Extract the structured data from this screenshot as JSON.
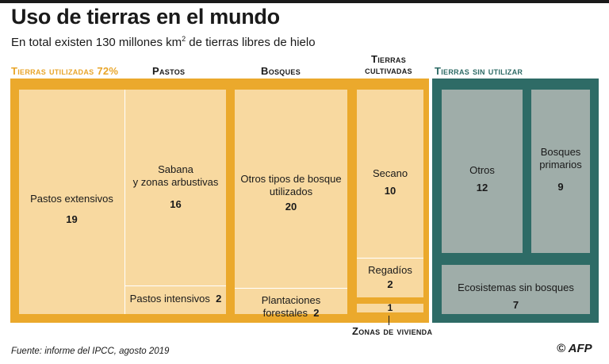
{
  "title": "Uso de tierras en el mundo",
  "subtitle_pre": "En total existen 130 millones km",
  "subtitle_sup": "2",
  "subtitle_post": " de tierras libres de hielo",
  "headers": {
    "used": "Tierras utilizadas 72%",
    "pastos": "Pastos",
    "bosques": "Bosques",
    "cultivadas_1": "Tierras",
    "cultivadas_2": "cultivadas",
    "unused": "Tierras sin utilizar",
    "vivienda": "Zonas de vivienda"
  },
  "cells": {
    "pastos_extensivos": {
      "label": "Pastos extensivos",
      "value": "19"
    },
    "sabana": {
      "label_1": "Sabana",
      "label_2": "y zonas arbustivas",
      "value": "16"
    },
    "pastos_intensivos": {
      "label": "Pastos intensivos",
      "value": "2"
    },
    "otros_bosque": {
      "label_1": "Otros tipos de bosque",
      "label_2": "utilizados",
      "value": "20"
    },
    "plantaciones": {
      "label": "Plantaciones forestales",
      "value": "2"
    },
    "secano": {
      "label": "Secano",
      "value": "10"
    },
    "regadios": {
      "label": "Regadíos",
      "value": "2"
    },
    "vivienda": {
      "value": "1"
    },
    "otros": {
      "label": "Otros",
      "value": "12"
    },
    "bosques_primarios": {
      "label_1": "Bosques",
      "label_2": "primarios",
      "value": "9"
    },
    "ecosistemas": {
      "label": "Ecosistemas sin bosques",
      "value": "7"
    }
  },
  "footer": "Fuente: informe del IPCC, agosto 2019",
  "logo": "© AFP",
  "colors": {
    "used": "#eba92c",
    "unused": "#2e6b66",
    "cell_light": "#f8d9a0",
    "cell_grey": "#9fada9"
  }
}
